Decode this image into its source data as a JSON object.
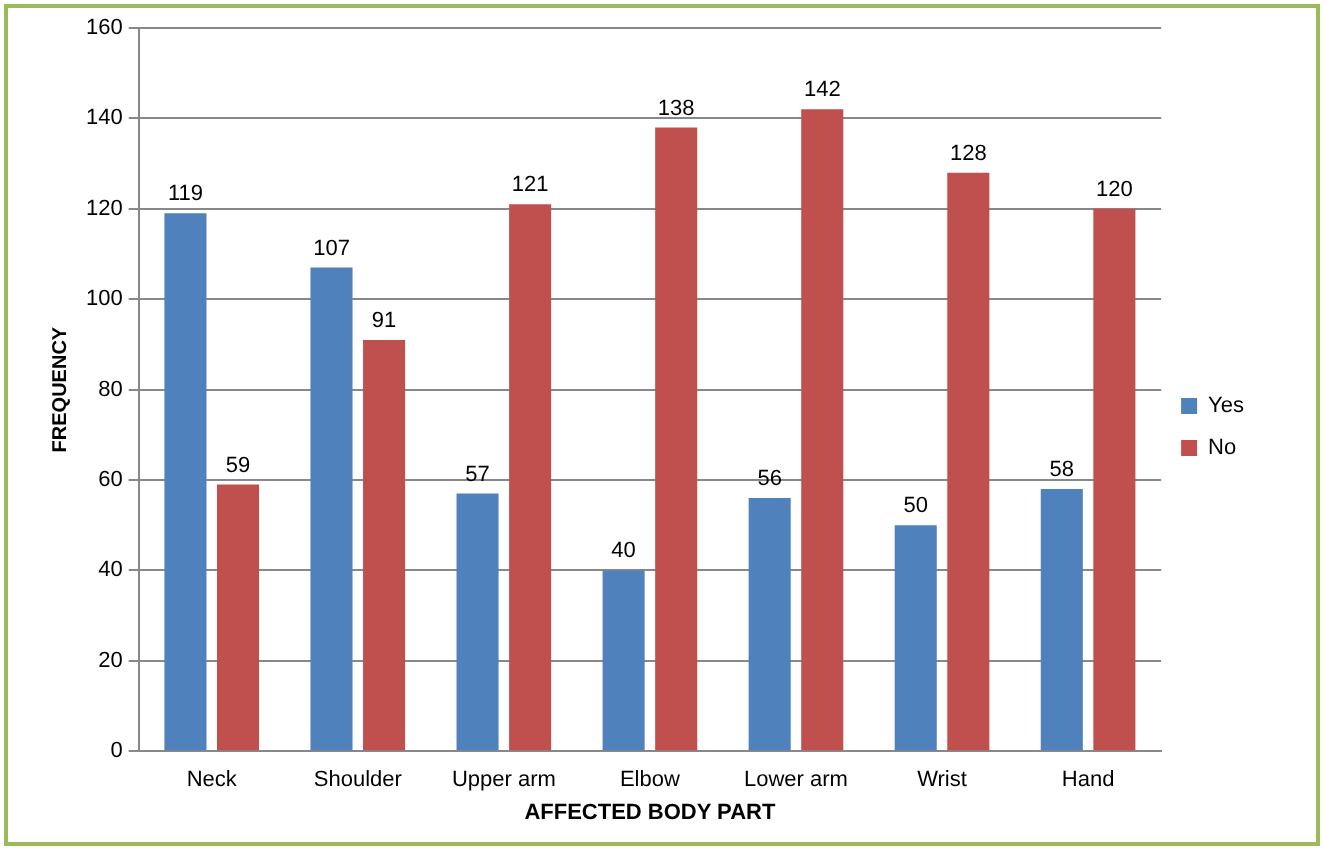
{
  "chart_data": {
    "type": "bar",
    "xlabel": "AFFECTED BODY PART",
    "ylabel": "FREQUENCY",
    "categories": [
      "Neck",
      "Shoulder",
      "Upper arm",
      "Elbow",
      "Lower arm",
      "Wrist",
      "Hand"
    ],
    "series": [
      {
        "name": "Yes",
        "color": "#4f81bd",
        "values": [
          119,
          107,
          57,
          40,
          56,
          50,
          58
        ]
      },
      {
        "name": "No",
        "color": "#c0504d",
        "values": [
          59,
          91,
          121,
          138,
          142,
          128,
          120
        ]
      }
    ],
    "ylim": [
      0,
      160
    ],
    "yticks": [
      0,
      20,
      40,
      60,
      80,
      100,
      120,
      140,
      160
    ],
    "grid": "y",
    "legend": "right",
    "data_labels": true
  }
}
